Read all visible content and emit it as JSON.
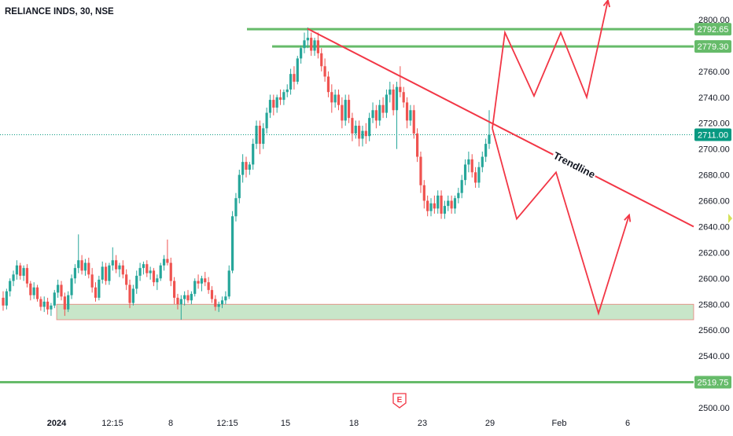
{
  "symbol": {
    "title": "RELIANCE INDS, 30, NSE"
  },
  "colors": {
    "up": "#26a69a",
    "down": "#ef5350",
    "drawing_red": "#f23645",
    "level_green": "#66bb6a",
    "zone_fill": "#c8e6c9",
    "axis_text": "#131722",
    "current_price_line": "#089981"
  },
  "chart_data": {
    "type": "candlestick",
    "y_axis": {
      "min": 2500,
      "max": 2800,
      "ticks": [
        "2500.00",
        "2520.00",
        "2540.00",
        "2560.00",
        "2580.00",
        "2600.00",
        "2620.00",
        "2640.00",
        "2660.00",
        "2680.00",
        "2700.00",
        "2720.00",
        "2740.00",
        "2760.00",
        "2780.00",
        "2800.00"
      ]
    },
    "x_axis": {
      "tick_labels": [
        "2024",
        "12:15",
        "8",
        "12:15",
        "15",
        "18",
        "23",
        "29",
        "Feb",
        "6"
      ],
      "bold_labels": [
        "2024"
      ]
    },
    "price_labels": [
      {
        "text": "2792.65",
        "value": 2792.65,
        "kind": "level"
      },
      {
        "text": "2779.30",
        "value": 2779.3,
        "kind": "level"
      },
      {
        "text": "2711.00",
        "value": 2711.0,
        "kind": "current"
      },
      {
        "text": "2519.75",
        "value": 2519.75,
        "kind": "level"
      }
    ],
    "horizontal_levels": [
      2792.65,
      2779.3,
      2519.75
    ],
    "support_zone": {
      "low": 2568,
      "high": 2580
    },
    "trendline": {
      "label": "Trendline",
      "start": {
        "x_label": "15",
        "price": 2793
      },
      "end_price": 2640
    },
    "projections": [
      {
        "name": "bullish",
        "prices": [
          2716,
          2790,
          2741,
          2790,
          2740,
          2815
        ]
      },
      {
        "name": "bearish",
        "prices": [
          2716,
          2646,
          2682,
          2573,
          2649
        ]
      }
    ],
    "event_marker": "E",
    "candles": [
      [
        2585,
        2590,
        2575,
        2579
      ],
      [
        2579,
        2592,
        2576,
        2590
      ],
      [
        2590,
        2600,
        2586,
        2598
      ],
      [
        2598,
        2606,
        2594,
        2603
      ],
      [
        2603,
        2614,
        2599,
        2610
      ],
      [
        2610,
        2612,
        2599,
        2602
      ],
      [
        2602,
        2610,
        2598,
        2608
      ],
      [
        2608,
        2611,
        2593,
        2596
      ],
      [
        2596,
        2598,
        2583,
        2587
      ],
      [
        2587,
        2597,
        2584,
        2593
      ],
      [
        2593,
        2595,
        2582,
        2584
      ],
      [
        2584,
        2586,
        2575,
        2578
      ],
      [
        2578,
        2586,
        2574,
        2582
      ],
      [
        2582,
        2585,
        2572,
        2576
      ],
      [
        2576,
        2581,
        2571,
        2579
      ],
      [
        2579,
        2591,
        2577,
        2589
      ],
      [
        2589,
        2599,
        2585,
        2595
      ],
      [
        2595,
        2598,
        2583,
        2586
      ],
      [
        2586,
        2589,
        2571,
        2576
      ],
      [
        2576,
        2590,
        2574,
        2587
      ],
      [
        2587,
        2603,
        2584,
        2600
      ],
      [
        2600,
        2611,
        2596,
        2608
      ],
      [
        2608,
        2634,
        2604,
        2614
      ],
      [
        2614,
        2618,
        2603,
        2606
      ],
      [
        2606,
        2615,
        2602,
        2612
      ],
      [
        2612,
        2616,
        2600,
        2603
      ],
      [
        2603,
        2608,
        2589,
        2593
      ],
      [
        2593,
        2597,
        2582,
        2585
      ],
      [
        2585,
        2602,
        2583,
        2599
      ],
      [
        2599,
        2613,
        2596,
        2609
      ],
      [
        2609,
        2612,
        2595,
        2598
      ],
      [
        2598,
        2612,
        2595,
        2610
      ],
      [
        2610,
        2624,
        2606,
        2614
      ],
      [
        2614,
        2618,
        2604,
        2607
      ],
      [
        2607,
        2612,
        2601,
        2610
      ],
      [
        2610,
        2614,
        2600,
        2603
      ],
      [
        2603,
        2607,
        2591,
        2595
      ],
      [
        2595,
        2599,
        2577,
        2581
      ],
      [
        2581,
        2595,
        2579,
        2592
      ],
      [
        2592,
        2606,
        2588,
        2602
      ],
      [
        2602,
        2612,
        2598,
        2608
      ],
      [
        2608,
        2613,
        2603,
        2611
      ],
      [
        2611,
        2614,
        2601,
        2604
      ],
      [
        2604,
        2609,
        2599,
        2606
      ],
      [
        2606,
        2608,
        2594,
        2597
      ],
      [
        2597,
        2603,
        2591,
        2600
      ],
      [
        2600,
        2612,
        2598,
        2610
      ],
      [
        2610,
        2618,
        2606,
        2615
      ],
      [
        2615,
        2630,
        2610,
        2612
      ],
      [
        2612,
        2616,
        2594,
        2598
      ],
      [
        2598,
        2601,
        2580,
        2585
      ],
      [
        2585,
        2588,
        2576,
        2580
      ],
      [
        2580,
        2587,
        2568,
        2584
      ],
      [
        2584,
        2590,
        2579,
        2587
      ],
      [
        2587,
        2591,
        2581,
        2583
      ],
      [
        2583,
        2590,
        2580,
        2588
      ],
      [
        2588,
        2600,
        2586,
        2598
      ],
      [
        2598,
        2603,
        2592,
        2596
      ],
      [
        2596,
        2602,
        2590,
        2600
      ],
      [
        2600,
        2605,
        2594,
        2597
      ],
      [
        2597,
        2601,
        2588,
        2591
      ],
      [
        2591,
        2594,
        2581,
        2584
      ],
      [
        2584,
        2587,
        2575,
        2578
      ],
      [
        2578,
        2582,
        2574,
        2580
      ],
      [
        2580,
        2586,
        2577,
        2583
      ],
      [
        2583,
        2590,
        2580,
        2586
      ],
      [
        2586,
        2610,
        2584,
        2606
      ],
      [
        2606,
        2652,
        2604,
        2648
      ],
      [
        2648,
        2666,
        2644,
        2662
      ],
      [
        2662,
        2684,
        2658,
        2680
      ],
      [
        2680,
        2696,
        2674,
        2690
      ],
      [
        2690,
        2694,
        2678,
        2684
      ],
      [
        2684,
        2690,
        2680,
        2688
      ],
      [
        2688,
        2708,
        2684,
        2704
      ],
      [
        2704,
        2722,
        2700,
        2718
      ],
      [
        2718,
        2722,
        2696,
        2704
      ],
      [
        2704,
        2720,
        2700,
        2716
      ],
      [
        2716,
        2732,
        2712,
        2728
      ],
      [
        2728,
        2742,
        2724,
        2738
      ],
      [
        2738,
        2742,
        2726,
        2732
      ],
      [
        2732,
        2742,
        2728,
        2740
      ],
      [
        2740,
        2746,
        2734,
        2738
      ],
      [
        2738,
        2746,
        2734,
        2744
      ],
      [
        2744,
        2750,
        2740,
        2746
      ],
      [
        2746,
        2762,
        2742,
        2758
      ],
      [
        2758,
        2764,
        2746,
        2752
      ],
      [
        2752,
        2772,
        2750,
        2770
      ],
      [
        2770,
        2780,
        2766,
        2778
      ],
      [
        2778,
        2790,
        2774,
        2784
      ],
      [
        2784,
        2794,
        2778,
        2786
      ],
      [
        2786,
        2790,
        2772,
        2776
      ],
      [
        2776,
        2786,
        2772,
        2784
      ],
      [
        2784,
        2790,
        2770,
        2774
      ],
      [
        2774,
        2778,
        2760,
        2764
      ],
      [
        2764,
        2770,
        2752,
        2756
      ],
      [
        2756,
        2760,
        2740,
        2744
      ],
      [
        2744,
        2750,
        2728,
        2736
      ],
      [
        2736,
        2746,
        2732,
        2742
      ],
      [
        2742,
        2746,
        2730,
        2734
      ],
      [
        2734,
        2740,
        2716,
        2722
      ],
      [
        2722,
        2742,
        2718,
        2738
      ],
      [
        2738,
        2742,
        2720,
        2724
      ],
      [
        2724,
        2728,
        2706,
        2712
      ],
      [
        2712,
        2722,
        2708,
        2718
      ],
      [
        2718,
        2722,
        2702,
        2708
      ],
      [
        2708,
        2718,
        2702,
        2714
      ],
      [
        2714,
        2720,
        2704,
        2710
      ],
      [
        2710,
        2728,
        2706,
        2724
      ],
      [
        2724,
        2736,
        2720,
        2730
      ],
      [
        2730,
        2734,
        2716,
        2722
      ],
      [
        2722,
        2738,
        2718,
        2734
      ],
      [
        2734,
        2740,
        2724,
        2728
      ],
      [
        2728,
        2746,
        2724,
        2742
      ],
      [
        2742,
        2752,
        2736,
        2746
      ],
      [
        2746,
        2750,
        2726,
        2730
      ],
      [
        2730,
        2752,
        2700,
        2748
      ],
      [
        2748,
        2764,
        2740,
        2744
      ],
      [
        2744,
        2748,
        2732,
        2736
      ],
      [
        2736,
        2740,
        2716,
        2722
      ],
      [
        2722,
        2734,
        2718,
        2730
      ],
      [
        2730,
        2734,
        2708,
        2712
      ],
      [
        2712,
        2716,
        2690,
        2694
      ],
      [
        2694,
        2698,
        2666,
        2672
      ],
      [
        2672,
        2676,
        2654,
        2660
      ],
      [
        2660,
        2664,
        2648,
        2652
      ],
      [
        2652,
        2662,
        2648,
        2658
      ],
      [
        2658,
        2664,
        2650,
        2654
      ],
      [
        2654,
        2668,
        2650,
        2664
      ],
      [
        2664,
        2668,
        2646,
        2650
      ],
      [
        2650,
        2660,
        2646,
        2656
      ],
      [
        2656,
        2664,
        2652,
        2660
      ],
      [
        2660,
        2664,
        2650,
        2654
      ],
      [
        2654,
        2664,
        2650,
        2662
      ],
      [
        2662,
        2670,
        2658,
        2666
      ],
      [
        2666,
        2680,
        2662,
        2676
      ],
      [
        2676,
        2692,
        2672,
        2688
      ],
      [
        2688,
        2698,
        2682,
        2692
      ],
      [
        2692,
        2696,
        2678,
        2682
      ],
      [
        2682,
        2686,
        2670,
        2674
      ],
      [
        2674,
        2690,
        2670,
        2686
      ],
      [
        2686,
        2698,
        2682,
        2694
      ],
      [
        2694,
        2708,
        2690,
        2704
      ],
      [
        2704,
        2730,
        2700,
        2711
      ]
    ]
  }
}
